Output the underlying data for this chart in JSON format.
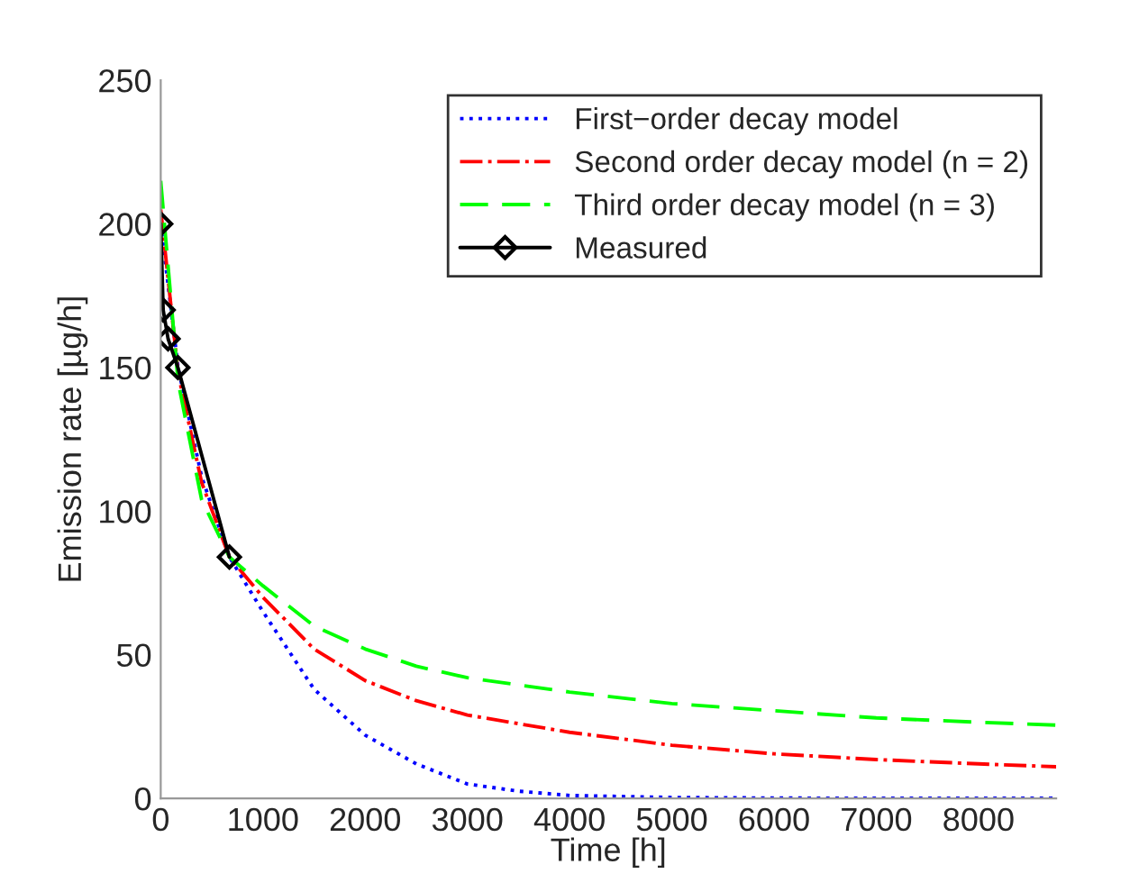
{
  "chart_data": {
    "type": "line",
    "xlabel": "Time [h]",
    "ylabel": "Emission rate [µg/h]",
    "xlim": [
      0,
      8760
    ],
    "ylim": [
      0,
      250
    ],
    "xticks": [
      0,
      1000,
      2000,
      3000,
      4000,
      5000,
      6000,
      7000,
      8000
    ],
    "yticks": [
      0,
      50,
      100,
      150,
      200,
      250
    ],
    "grid": false,
    "legend": "top right",
    "series": [
      {
        "name": "First−order decay model",
        "color": "#0000ff",
        "line_style": "dotted",
        "marker": "none",
        "x": [
          0,
          170,
          400,
          672,
          1000,
          1500,
          2000,
          2500,
          3000,
          3500,
          4000,
          5000,
          6000,
          7000,
          8000,
          8760
        ],
        "values": [
          200,
          150,
          112,
          84,
          65,
          38,
          22,
          12,
          5,
          2.5,
          1,
          0.3,
          0.1,
          0,
          0,
          0
        ]
      },
      {
        "name": "Second order decay model (n = 2)",
        "color": "#ff0000",
        "line_style": "dashdot",
        "marker": "none",
        "x": [
          0,
          170,
          400,
          672,
          1000,
          1500,
          2000,
          2500,
          3000,
          4000,
          5000,
          6000,
          7000,
          8000,
          8760
        ],
        "values": [
          205,
          148,
          110,
          84,
          70,
          52,
          41,
          34,
          29,
          23,
          18.5,
          15.5,
          13.5,
          12,
          11
        ]
      },
      {
        "name": "Third order decay model (n = 3)",
        "color": "#00ff00",
        "line_style": "dashed",
        "marker": "none",
        "x": [
          0,
          170,
          400,
          672,
          1000,
          1500,
          2000,
          2500,
          3000,
          4000,
          5000,
          6000,
          7000,
          8000,
          8760
        ],
        "values": [
          215,
          145,
          104,
          84,
          74,
          60,
          52,
          46,
          42,
          37,
          33,
          30.5,
          28,
          26.5,
          25.5
        ]
      },
      {
        "name": "Measured",
        "color": "#000000",
        "line_style": "solid",
        "marker": "diamond",
        "x": [
          0,
          24,
          72,
          168,
          672
        ],
        "values": [
          200,
          170,
          160,
          150,
          84
        ]
      }
    ]
  }
}
